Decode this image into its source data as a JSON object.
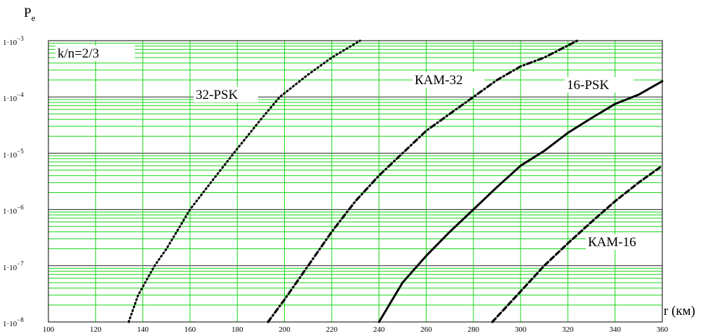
{
  "chart_data": {
    "type": "line",
    "y_scale": "log",
    "xlim": [
      100,
      360
    ],
    "ylim": [
      1e-08,
      0.001
    ],
    "grid": true,
    "xlabel": "r (км)",
    "ylabel_main": "P",
    "ylabel_sub": "e",
    "annotation": "k/n=2/3",
    "x_ticks": [
      100,
      120,
      140,
      160,
      180,
      200,
      220,
      240,
      260,
      280,
      300,
      320,
      340,
      360
    ],
    "y_ticks": [
      {
        "value": 1e-08,
        "base": "1·10",
        "exp": "−8"
      },
      {
        "value": 1e-07,
        "base": "1·10",
        "exp": "−7"
      },
      {
        "value": 1e-06,
        "base": "1·10",
        "exp": "−6"
      },
      {
        "value": 1e-05,
        "base": "1·10",
        "exp": "−5"
      },
      {
        "value": 0.0001,
        "base": "1·10",
        "exp": "−4"
      },
      {
        "value": 0.001,
        "base": "1·10",
        "exp": "−3"
      }
    ],
    "series": [
      {
        "name": "32-PSK",
        "dash": "dotted",
        "x": [
          134,
          138,
          145,
          150,
          160,
          170,
          180,
          190,
          198,
          210,
          220,
          232
        ],
        "y": [
          1e-08,
          3e-08,
          1e-07,
          2e-07,
          1e-06,
          3.5e-06,
          1.2e-05,
          4e-05,
          0.0001,
          0.00025,
          0.0005,
          0.001
        ]
      },
      {
        "name": "КАМ-32",
        "dash": "dashdot",
        "x": [
          193,
          200,
          210,
          220,
          230,
          240,
          250,
          260,
          270,
          280,
          290,
          300,
          310,
          324
        ],
        "y": [
          1e-08,
          2.5e-08,
          1e-07,
          4e-07,
          1.4e-06,
          4e-06,
          1e-05,
          2.5e-05,
          5e-05,
          0.0001,
          0.0002,
          0.00035,
          0.0005,
          0.001
        ]
      },
      {
        "name": "16-PSK",
        "dash": "solid",
        "x": [
          240,
          250,
          260,
          270,
          280,
          290,
          300,
          310,
          320,
          330,
          340,
          350,
          360
        ],
        "y": [
          1e-08,
          5e-08,
          1.5e-07,
          4e-07,
          1e-06,
          2.5e-06,
          6e-06,
          1.1e-05,
          2.3e-05,
          4.2e-05,
          7.5e-05,
          0.00011,
          0.00019
        ]
      },
      {
        "name": "КАМ-16",
        "dash": "dashed",
        "x": [
          288,
          300,
          310,
          320,
          330,
          340,
          350,
          360
        ],
        "y": [
          1e-08,
          3.5e-08,
          1e-07,
          2.5e-07,
          6e-07,
          1.4e-06,
          3e-06,
          6e-06
        ]
      }
    ]
  }
}
